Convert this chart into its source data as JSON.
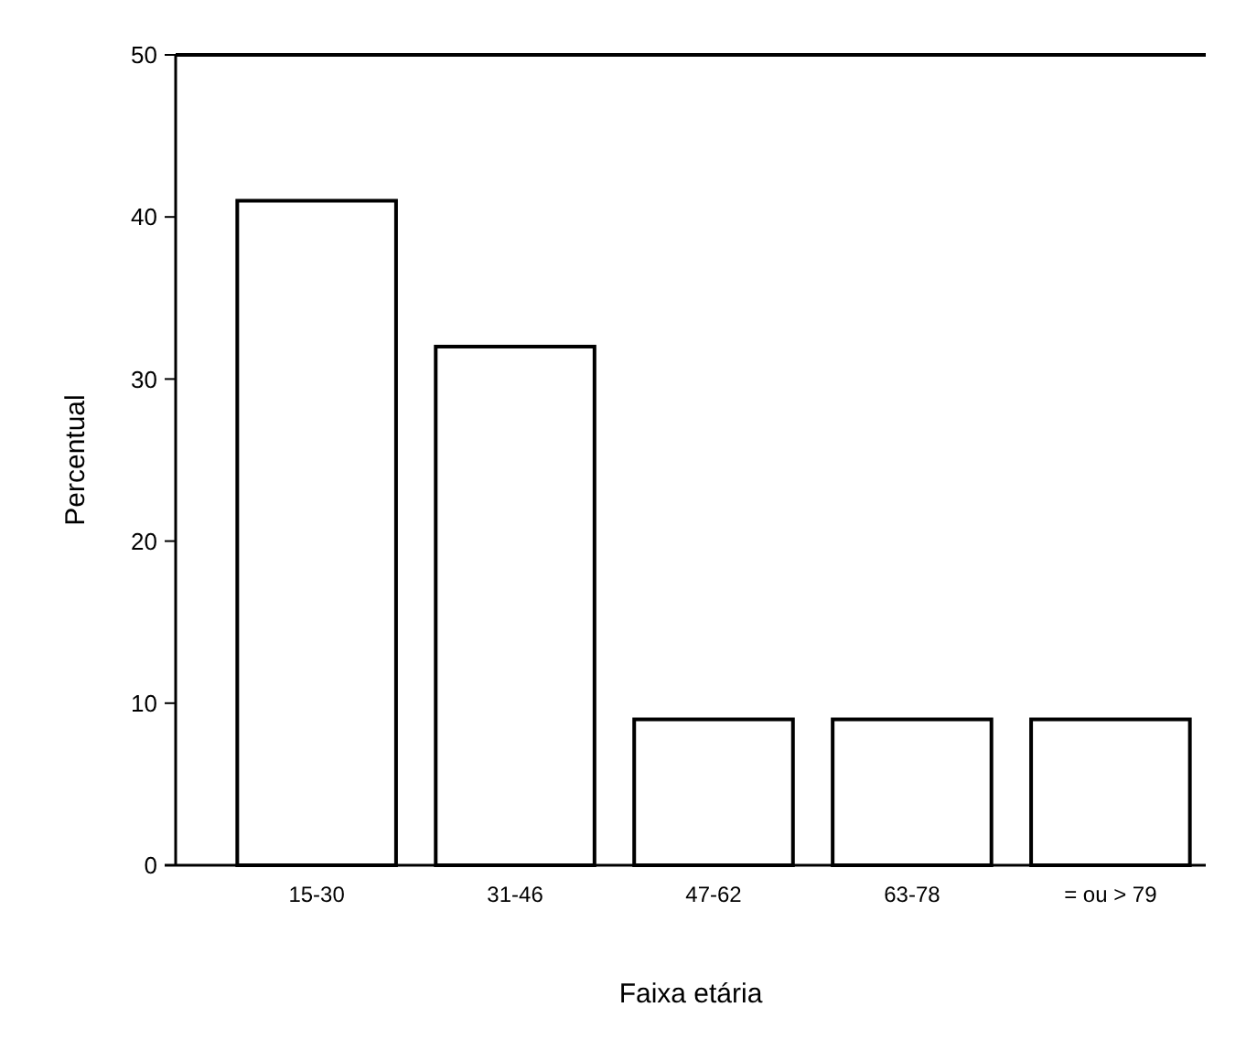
{
  "chart_data": {
    "type": "bar",
    "xlabel": "Faixa etária",
    "ylabel": "Percentual",
    "categories": [
      "15-30",
      "31-46",
      "47-62",
      "63-78",
      "= ou > 79"
    ],
    "values": [
      41,
      32,
      9,
      9,
      9
    ],
    "color": "#ffffff",
    "ylim": [
      0,
      50
    ],
    "yticks": [
      0,
      10,
      20,
      30,
      40,
      50
    ],
    "grid": false
  }
}
